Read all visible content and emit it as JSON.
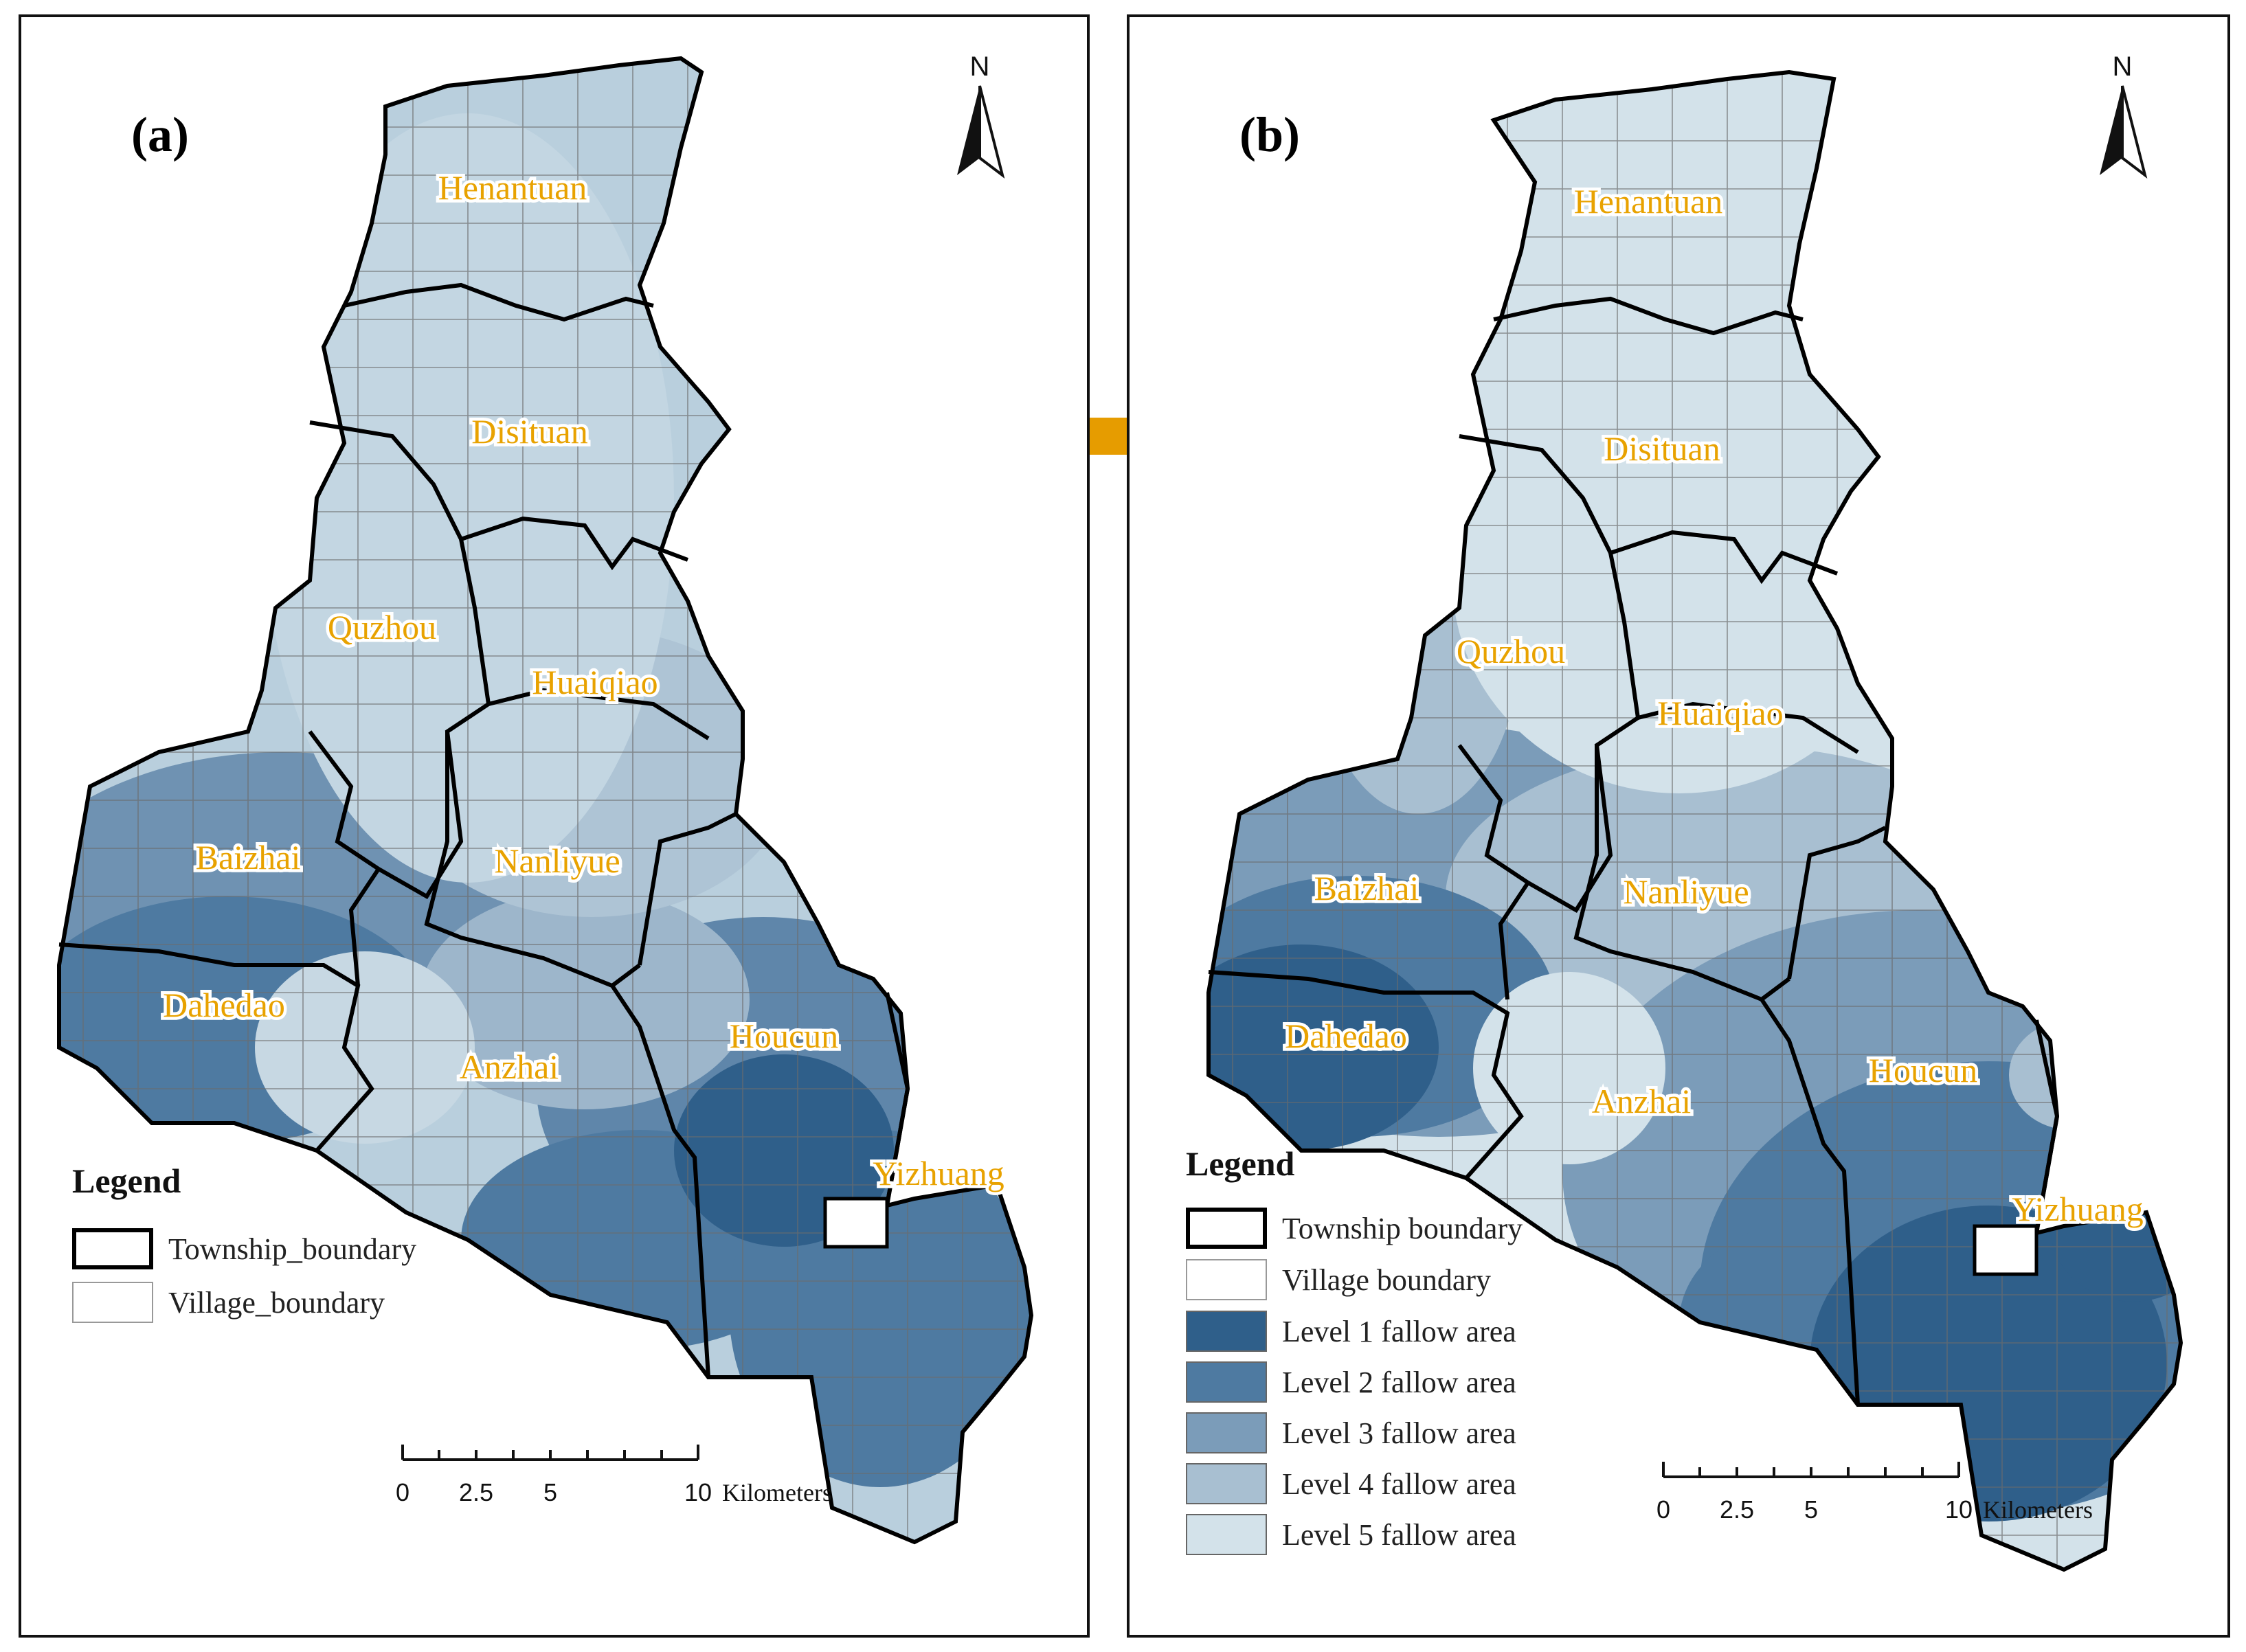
{
  "panel_a": {
    "label": "(a)",
    "north": "N",
    "towns": [
      "Henantuan",
      "Disituan",
      "Quzhou",
      "Huaiqiao",
      "Baizhai",
      "Nanliyue",
      "Dahedao",
      "Anzhai",
      "Houcun",
      "Yizhuang"
    ],
    "legend": {
      "title": "Legend",
      "items": [
        "Township_boundary",
        "Village_boundary"
      ]
    },
    "scale": {
      "ticks": [
        "0",
        "2.5",
        "5",
        "10"
      ],
      "unit": "Kilometers"
    }
  },
  "panel_b": {
    "label": "(b)",
    "north": "N",
    "towns": [
      "Henantuan",
      "Disituan",
      "Quzhou",
      "Huaiqiao",
      "Baizhai",
      "Nanliyue",
      "Dahedao",
      "Anzhai",
      "Houcun",
      "Yizhuang"
    ],
    "legend": {
      "title": "Legend",
      "items": [
        "Township boundary",
        "Village boundary",
        "Level 1 fallow area",
        "Level 2 fallow area",
        "Level 3 fallow area",
        "Level 4 fallow area",
        "Level 5 fallow area"
      ]
    },
    "scale": {
      "ticks": [
        "0",
        "2.5",
        "5",
        "10"
      ],
      "unit": "Kilometers"
    }
  },
  "colors": {
    "level1": "#2f5f8a",
    "level2": "#4e7aa1",
    "level3": "#7b9cb9",
    "level4": "#a8bfd1",
    "level5": "#d3e2ea",
    "arrow": "#e69c00",
    "label": "#e8a200"
  }
}
